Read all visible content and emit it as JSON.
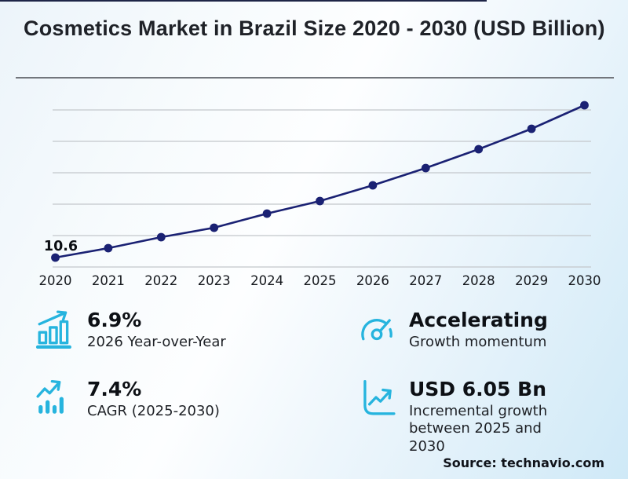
{
  "header": {
    "title": "Cosmetics Market in Brazil Size 2020 - 2030 (USD Billion)"
  },
  "chart_data": {
    "type": "line",
    "title": "Cosmetics Market in Brazil Size 2020 - 2030 (USD Billion)",
    "x": [
      "2020",
      "2021",
      "2022",
      "2023",
      "2024",
      "2025",
      "2026",
      "2027",
      "2028",
      "2029",
      "2030"
    ],
    "values": [
      10.6,
      11.2,
      11.9,
      12.5,
      13.4,
      14.2,
      15.2,
      16.3,
      17.5,
      18.8,
      20.3
    ],
    "unit": "USD Billion",
    "point_label": {
      "index": 0,
      "text": "10.6"
    },
    "ylim": [
      9.6,
      21.2
    ],
    "gridline_values": [
      10,
      12,
      14,
      16,
      18,
      20
    ],
    "grid": true,
    "legend": false,
    "line_color": "#1a2173",
    "marker_color": "#1a2173"
  },
  "stats": [
    {
      "icon": "bar-chart-growth-icon",
      "value": "6.9%",
      "label": "2026 Year-over-Year"
    },
    {
      "icon": "gauge-icon",
      "value": "Accelerating",
      "label": "Growth momentum"
    },
    {
      "icon": "trend-arrow-bars-icon",
      "value": "7.4%",
      "label": "CAGR (2025-2030)"
    },
    {
      "icon": "axis-chart-growth-icon",
      "value": "USD 6.05 Bn",
      "label": "Incremental growth between 2025 and 2030"
    }
  ],
  "footer": {
    "source": "Source: technavio.com"
  },
  "colors": {
    "accent_cyan": "#26b4de",
    "line_navy": "#1a2173",
    "title_color": "#1f2228",
    "grid_color": "#c3c7cb",
    "divider_gray": "#72767c",
    "top_bar_navy": "#1e2547",
    "text_dark": "#15181d"
  }
}
